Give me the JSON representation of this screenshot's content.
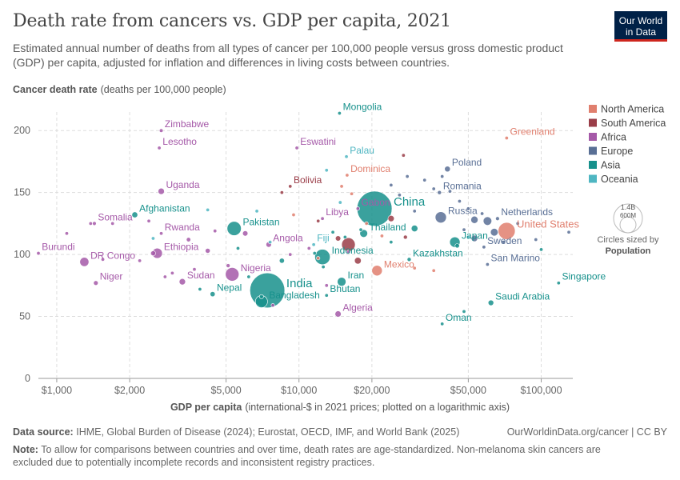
{
  "title": "Death rate from cancers vs. GDP per capita, 2021",
  "subtitle": "Estimated annual number of deaths from all types of cancer per 100,000 people versus gross domestic product (GDP) per capita, adjusted for inflation and differences in living costs between countries.",
  "logo": {
    "line1": "Our World",
    "line2": "in Data"
  },
  "footer": {
    "source_label": "Data source:",
    "source_text": "IHME, Global Burden of Disease (2024); Eurostat, OECD, IMF, and World Bank (2025)",
    "url": "OurWorldinData.org/cancer | CC BY",
    "note_label": "Note:",
    "note_text": "To allow for comparisons between countries and over time, death rates are age-standardized. Non-melanoma skin cancers are",
    "note_text2": "excluded due to potentially incomplete records and inconsistent registry practices."
  },
  "size_legend": {
    "value": "1.4B",
    "small": "600M",
    "caption1": "Circles sized by",
    "caption2": "Population"
  },
  "colors": {
    "North America": "#e07f6e",
    "South America": "#9a3d48",
    "Africa": "#a559a8",
    "Europe": "#596f95",
    "Asia": "#17918c",
    "Oceania": "#4fb6c2"
  },
  "chart_data": {
    "type": "scatter",
    "xscale": "log",
    "ylabel_bold": "Cancer death rate",
    "ylabel_rest": "(deaths per 100,000 people)",
    "xlabel_bold": "GDP per capita",
    "xlabel_rest": "(international-$ in 2021 prices; plotted on a logarithmic axis)",
    "xlim": [
      840,
      135000
    ],
    "ylim": [
      0,
      215
    ],
    "x_ticks": [
      {
        "v": 1000,
        "label": "$1,000"
      },
      {
        "v": 2000,
        "label": "$2,000"
      },
      {
        "v": 5000,
        "label": "$5,000"
      },
      {
        "v": 10000,
        "label": "$10,000"
      },
      {
        "v": 20000,
        "label": "$20,000"
      },
      {
        "v": 50000,
        "label": "$50,000"
      },
      {
        "v": 100000,
        "label": "$100,000"
      }
    ],
    "y_ticks": [
      {
        "v": 0,
        "label": "0"
      },
      {
        "v": 50,
        "label": "50"
      },
      {
        "v": 100,
        "label": "100"
      },
      {
        "v": 150,
        "label": "150"
      },
      {
        "v": 200,
        "label": "200"
      }
    ],
    "legend": [
      "North America",
      "South America",
      "Africa",
      "Europe",
      "Asia",
      "Oceania"
    ],
    "labeled_points": [
      {
        "name": "Mongolia",
        "region": "Asia",
        "x": 14700,
        "y": 214,
        "pop": 3.4
      },
      {
        "name": "Zimbabwe",
        "region": "Africa",
        "x": 2700,
        "y": 200,
        "pop": 16
      },
      {
        "name": "Greenland",
        "region": "North America",
        "x": 72000,
        "y": 194,
        "pop": 0.06
      },
      {
        "name": "Lesotho",
        "region": "Africa",
        "x": 2650,
        "y": 186,
        "pop": 2.3
      },
      {
        "name": "Eswatini",
        "region": "Africa",
        "x": 9800,
        "y": 186,
        "pop": 1.2
      },
      {
        "name": "Palau",
        "region": "Oceania",
        "x": 15700,
        "y": 179,
        "pop": 0.02
      },
      {
        "name": "Poland",
        "region": "Europe",
        "x": 41000,
        "y": 169,
        "pop": 38
      },
      {
        "name": "Dominica",
        "region": "North America",
        "x": 15800,
        "y": 164,
        "pop": 0.07
      },
      {
        "name": "Bolivia",
        "region": "South America",
        "x": 9200,
        "y": 155,
        "pop": 12
      },
      {
        "name": "Uganda",
        "region": "Africa",
        "x": 2700,
        "y": 151,
        "pop": 46
      },
      {
        "name": "Romania",
        "region": "Europe",
        "x": 38000,
        "y": 150,
        "pop": 19
      },
      {
        "name": "China",
        "region": "Asia",
        "x": 20500,
        "y": 137,
        "pop": 1420
      },
      {
        "name": "Afghanistan",
        "region": "Asia",
        "x": 2100,
        "y": 132,
        "pop": 40
      },
      {
        "name": "Netherlands",
        "region": "Europe",
        "x": 66000,
        "y": 129,
        "pop": 17.5
      },
      {
        "name": "Gabon",
        "region": "Africa",
        "x": 17500,
        "y": 137,
        "pop": 2.3
      },
      {
        "name": "Libya",
        "region": "Africa",
        "x": 12500,
        "y": 129,
        "pop": 7
      },
      {
        "name": "Russia",
        "region": "Europe",
        "x": 38500,
        "y": 130,
        "pop": 145
      },
      {
        "name": "Somalia",
        "region": "Africa",
        "x": 1430,
        "y": 125,
        "pop": 17
      },
      {
        "name": "Pakistan",
        "region": "Asia",
        "x": 5400,
        "y": 121,
        "pop": 231
      },
      {
        "name": "United States",
        "region": "North America",
        "x": 72000,
        "y": 119,
        "pop": 336
      },
      {
        "name": "Thailand",
        "region": "Asia",
        "x": 18500,
        "y": 117,
        "pop": 71
      },
      {
        "name": "Rwanda",
        "region": "Africa",
        "x": 2700,
        "y": 117,
        "pop": 13.5
      },
      {
        "name": "Japan",
        "region": "Asia",
        "x": 44000,
        "y": 110,
        "pop": 125
      },
      {
        "name": "Fiji",
        "region": "Oceania",
        "x": 11500,
        "y": 108,
        "pop": 0.9
      },
      {
        "name": "Angola",
        "region": "Africa",
        "x": 7500,
        "y": 108,
        "pop": 34
      },
      {
        "name": "Sweden",
        "region": "Europe",
        "x": 58000,
        "y": 106,
        "pop": 10.4
      },
      {
        "name": "Ethiopia",
        "region": "Africa",
        "x": 2600,
        "y": 101,
        "pop": 120
      },
      {
        "name": "Burundi",
        "region": "Africa",
        "x": 840,
        "y": 101,
        "pop": 12.5
      },
      {
        "name": "Indonesia",
        "region": "Asia",
        "x": 12500,
        "y": 98,
        "pop": 273
      },
      {
        "name": "Kazakhstan",
        "region": "Asia",
        "x": 28500,
        "y": 96,
        "pop": 19
      },
      {
        "name": "DR Congo",
        "region": "Africa",
        "x": 1300,
        "y": 94,
        "pop": 95
      },
      {
        "name": "San Marino",
        "region": "Europe",
        "x": 60000,
        "y": 92,
        "pop": 0.03
      },
      {
        "name": "Nigeria",
        "region": "Africa",
        "x": 5300,
        "y": 84,
        "pop": 213
      },
      {
        "name": "Mexico",
        "region": "North America",
        "x": 21000,
        "y": 87,
        "pop": 127
      },
      {
        "name": "India",
        "region": "Asia",
        "x": 7400,
        "y": 71,
        "pop": 1410
      },
      {
        "name": "Sudan",
        "region": "Africa",
        "x": 3300,
        "y": 78,
        "pop": 46
      },
      {
        "name": "Niger",
        "region": "Africa",
        "x": 1450,
        "y": 77,
        "pop": 25
      },
      {
        "name": "Iran",
        "region": "Asia",
        "x": 15000,
        "y": 78,
        "pop": 88
      },
      {
        "name": "Nepal",
        "region": "Asia",
        "x": 4400,
        "y": 68,
        "pop": 30
      },
      {
        "name": "Singapore",
        "region": "Asia",
        "x": 118000,
        "y": 77,
        "pop": 5.9
      },
      {
        "name": "Bhutan",
        "region": "Asia",
        "x": 13000,
        "y": 67,
        "pop": 0.8
      },
      {
        "name": "Bangladesh",
        "region": "Asia",
        "x": 7000,
        "y": 62,
        "pop": 170
      },
      {
        "name": "Saudi Arabia",
        "region": "Asia",
        "x": 62000,
        "y": 61,
        "pop": 36
      },
      {
        "name": "Algeria",
        "region": "Africa",
        "x": 14500,
        "y": 52,
        "pop": 44
      },
      {
        "name": "Oman",
        "region": "Asia",
        "x": 39000,
        "y": 44,
        "pop": 4.5
      }
    ],
    "other_points": [
      {
        "region": "Africa",
        "x": 1100,
        "y": 117,
        "pop": 5
      },
      {
        "region": "Africa",
        "x": 1380,
        "y": 125,
        "pop": 3
      },
      {
        "region": "Africa",
        "x": 1550,
        "y": 96,
        "pop": 8
      },
      {
        "region": "Africa",
        "x": 1700,
        "y": 125,
        "pop": 2
      },
      {
        "region": "Africa",
        "x": 2200,
        "y": 95,
        "pop": 6
      },
      {
        "region": "Africa",
        "x": 2400,
        "y": 127,
        "pop": 9
      },
      {
        "region": "Africa",
        "x": 2500,
        "y": 101,
        "pop": 29
      },
      {
        "region": "Africa",
        "x": 2800,
        "y": 82,
        "pop": 7
      },
      {
        "region": "Africa",
        "x": 3000,
        "y": 85,
        "pop": 4
      },
      {
        "region": "Africa",
        "x": 3500,
        "y": 112,
        "pop": 22
      },
      {
        "region": "Africa",
        "x": 3700,
        "y": 88,
        "pop": 6
      },
      {
        "region": "Africa",
        "x": 4200,
        "y": 103,
        "pop": 28
      },
      {
        "region": "Africa",
        "x": 4500,
        "y": 119,
        "pop": 12
      },
      {
        "region": "Africa",
        "x": 5100,
        "y": 91,
        "pop": 18
      },
      {
        "region": "Africa",
        "x": 6000,
        "y": 117,
        "pop": 33
      },
      {
        "region": "Africa",
        "x": 7800,
        "y": 59,
        "pop": 5
      },
      {
        "region": "Africa",
        "x": 9200,
        "y": 100,
        "pop": 3
      },
      {
        "region": "Africa",
        "x": 11000,
        "y": 105,
        "pop": 2
      },
      {
        "region": "Africa",
        "x": 13000,
        "y": 75,
        "pop": 1.3
      },
      {
        "region": "Africa",
        "x": 16000,
        "y": 102,
        "pop": 0.6
      },
      {
        "region": "Asia",
        "x": 3900,
        "y": 72,
        "pop": 5
      },
      {
        "region": "Asia",
        "x": 5600,
        "y": 105,
        "pop": 3
      },
      {
        "region": "Asia",
        "x": 6200,
        "y": 82,
        "pop": 5
      },
      {
        "region": "Asia",
        "x": 7000,
        "y": 66,
        "pop": 20
      },
      {
        "region": "Asia",
        "x": 8500,
        "y": 95,
        "pop": 30
      },
      {
        "region": "Asia",
        "x": 11600,
        "y": 101,
        "pop": 10
      },
      {
        "region": "Asia",
        "x": 12600,
        "y": 90,
        "pop": 3
      },
      {
        "region": "Asia",
        "x": 13800,
        "y": 118,
        "pop": 6
      },
      {
        "region": "Asia",
        "x": 15500,
        "y": 114,
        "pop": 8
      },
      {
        "region": "Asia",
        "x": 18000,
        "y": 120,
        "pop": 5
      },
      {
        "region": "Asia",
        "x": 24000,
        "y": 110,
        "pop": 4
      },
      {
        "region": "Asia",
        "x": 30000,
        "y": 121,
        "pop": 50
      },
      {
        "region": "Asia",
        "x": 45000,
        "y": 107,
        "pop": 23
      },
      {
        "region": "Asia",
        "x": 48000,
        "y": 54,
        "pop": 1.5
      },
      {
        "region": "Asia",
        "x": 100000,
        "y": 104,
        "pop": 3
      },
      {
        "region": "Europe",
        "x": 24000,
        "y": 156,
        "pop": 10
      },
      {
        "region": "Europe",
        "x": 28000,
        "y": 163,
        "pop": 4
      },
      {
        "region": "Europe",
        "x": 33000,
        "y": 160,
        "pop": 2
      },
      {
        "region": "Europe",
        "x": 36000,
        "y": 153,
        "pop": 6
      },
      {
        "region": "Europe",
        "x": 39000,
        "y": 163,
        "pop": 4
      },
      {
        "region": "Europe",
        "x": 42000,
        "y": 151,
        "pop": 10
      },
      {
        "region": "Europe",
        "x": 46000,
        "y": 143,
        "pop": 9
      },
      {
        "region": "Europe",
        "x": 50000,
        "y": 137,
        "pop": 5
      },
      {
        "region": "Europe",
        "x": 53000,
        "y": 128,
        "pop": 60
      },
      {
        "region": "Europe",
        "x": 57000,
        "y": 133,
        "pop": 5
      },
      {
        "region": "Europe",
        "x": 60000,
        "y": 127,
        "pop": 84
      },
      {
        "region": "Europe",
        "x": 64000,
        "y": 118,
        "pop": 68
      },
      {
        "region": "Europe",
        "x": 53000,
        "y": 113,
        "pop": 48
      },
      {
        "region": "Europe",
        "x": 70000,
        "y": 110,
        "pop": 9
      },
      {
        "region": "Europe",
        "x": 80000,
        "y": 125,
        "pop": 5
      },
      {
        "region": "Europe",
        "x": 95000,
        "y": 112,
        "pop": 0.6
      },
      {
        "region": "Europe",
        "x": 130000,
        "y": 118,
        "pop": 0.6
      },
      {
        "region": "Europe",
        "x": 48000,
        "y": 120,
        "pop": 4
      },
      {
        "region": "Europe",
        "x": 30000,
        "y": 135,
        "pop": 10
      },
      {
        "region": "Europe",
        "x": 26000,
        "y": 148,
        "pop": 2
      },
      {
        "region": "South America",
        "x": 12000,
        "y": 127,
        "pop": 4
      },
      {
        "region": "South America",
        "x": 14500,
        "y": 113,
        "pop": 33
      },
      {
        "region": "South America",
        "x": 16000,
        "y": 108,
        "pop": 214
      },
      {
        "region": "South America",
        "x": 17500,
        "y": 95,
        "pop": 52
      },
      {
        "region": "South America",
        "x": 24000,
        "y": 129,
        "pop": 45
      },
      {
        "region": "South America",
        "x": 27000,
        "y": 180,
        "pop": 3.4
      },
      {
        "region": "South America",
        "x": 27500,
        "y": 114,
        "pop": 19
      },
      {
        "region": "South America",
        "x": 8500,
        "y": 150,
        "pop": 1
      },
      {
        "region": "North America",
        "x": 9500,
        "y": 132,
        "pop": 2
      },
      {
        "region": "North America",
        "x": 12000,
        "y": 97,
        "pop": 3
      },
      {
        "region": "North America",
        "x": 15000,
        "y": 155,
        "pop": 1
      },
      {
        "region": "North America",
        "x": 19000,
        "y": 125,
        "pop": 5
      },
      {
        "region": "North America",
        "x": 22000,
        "y": 115,
        "pop": 0.3
      },
      {
        "region": "North America",
        "x": 30000,
        "y": 89,
        "pop": 0.4
      },
      {
        "region": "North America",
        "x": 36000,
        "y": 87,
        "pop": 1
      },
      {
        "region": "North America",
        "x": 16500,
        "y": 149,
        "pop": 0.2
      },
      {
        "region": "Oceania",
        "x": 4200,
        "y": 136,
        "pop": 10
      },
      {
        "region": "Oceania",
        "x": 6700,
        "y": 135,
        "pop": 1
      },
      {
        "region": "Oceania",
        "x": 7600,
        "y": 110,
        "pop": 0.2
      },
      {
        "region": "Oceania",
        "x": 13000,
        "y": 168,
        "pop": 0.1
      },
      {
        "region": "Oceania",
        "x": 14800,
        "y": 142,
        "pop": 0.1
      },
      {
        "region": "Oceania",
        "x": 50000,
        "y": 114,
        "pop": 5
      },
      {
        "region": "Oceania",
        "x": 2500,
        "y": 113,
        "pop": 0.7
      }
    ]
  }
}
